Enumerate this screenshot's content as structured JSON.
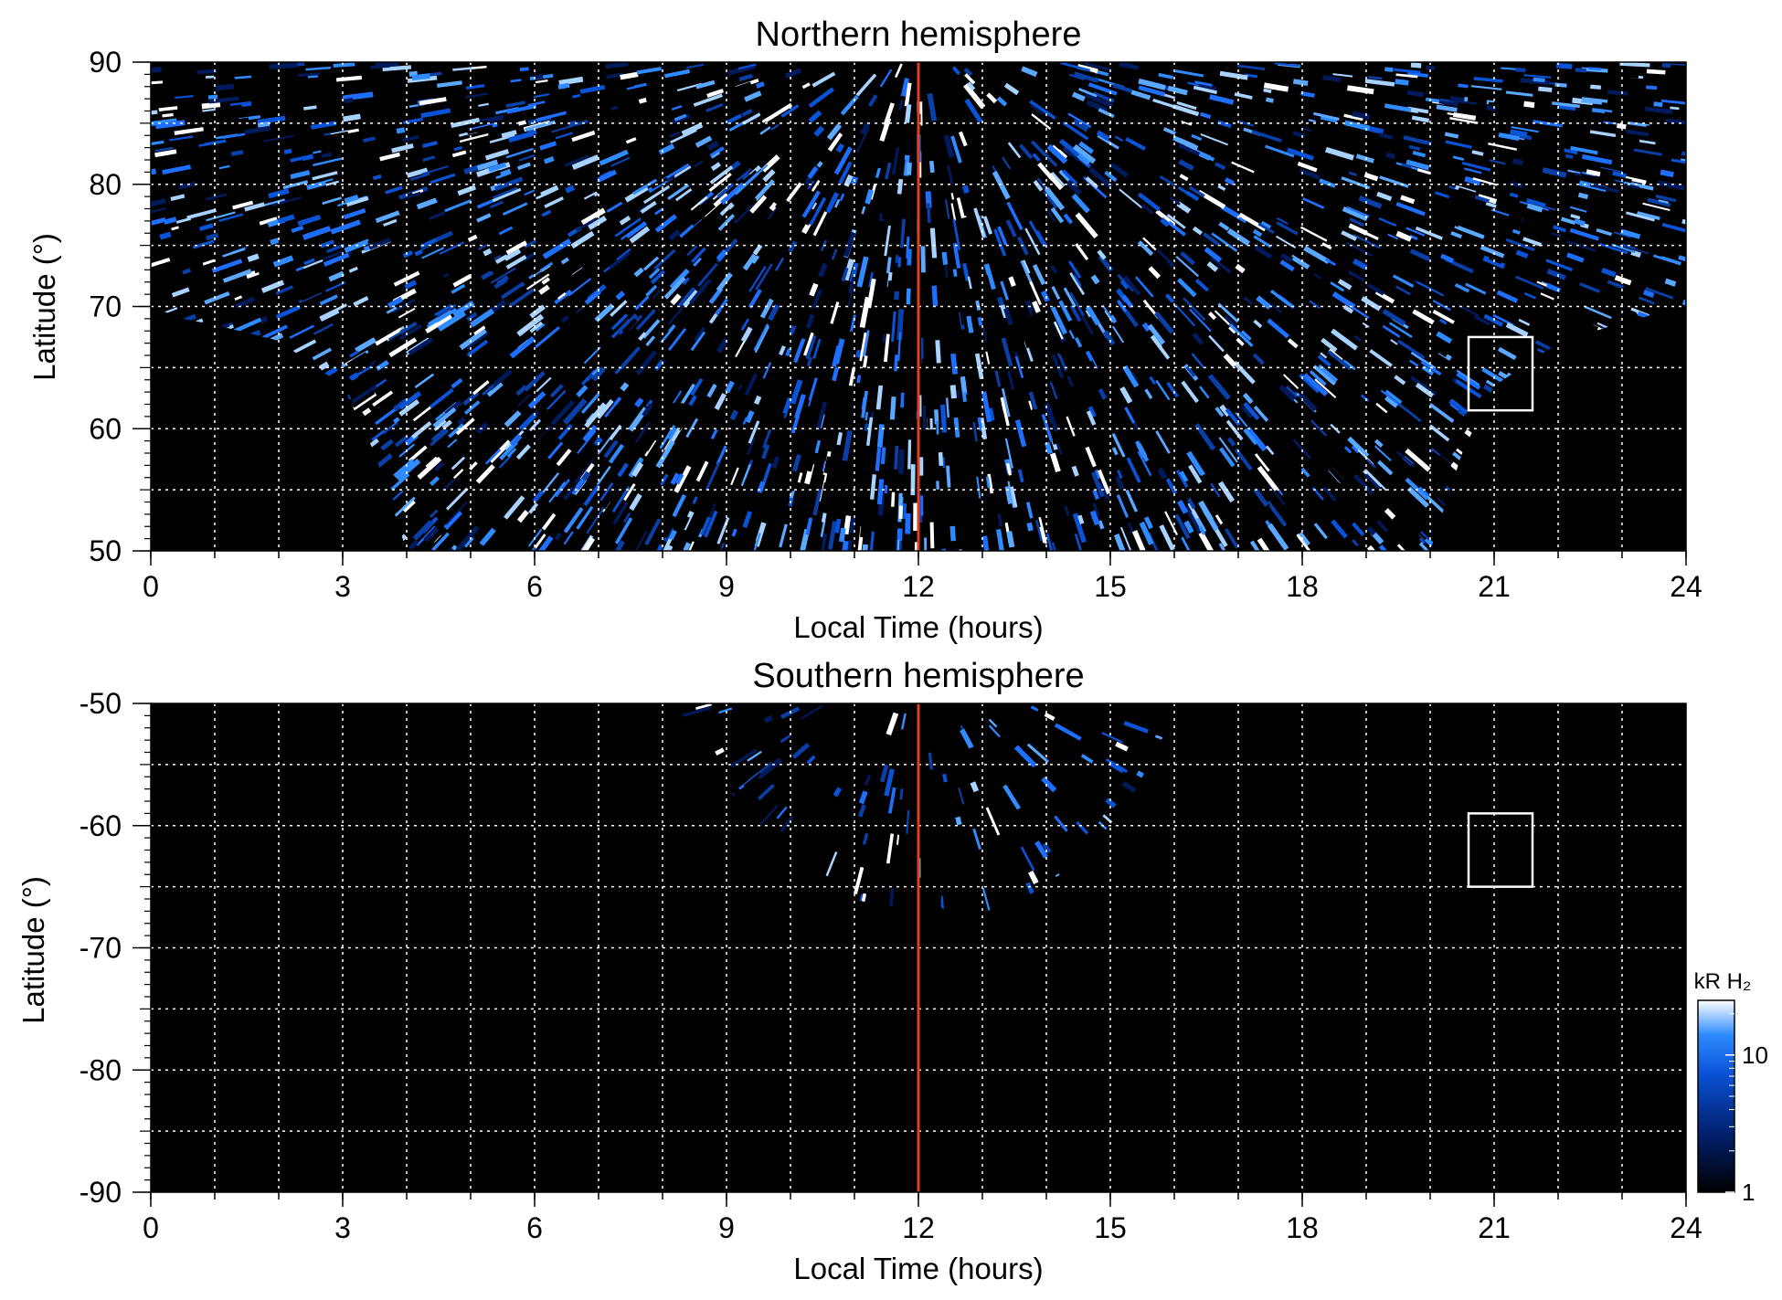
{
  "chart_data": [
    {
      "type": "heatmap",
      "title": "Northern hemisphere",
      "xlabel": "Local Time (hours)",
      "ylabel": "Latitude (°)",
      "xlim": [
        0,
        24
      ],
      "ylim": [
        50,
        90
      ],
      "x_ticks": [
        0,
        3,
        6,
        9,
        12,
        15,
        18,
        21,
        24
      ],
      "y_ticks": [
        50,
        60,
        70,
        80,
        90
      ],
      "x_tick_labels": [
        "0",
        "3",
        "6",
        "9",
        "12",
        "15",
        "18",
        "21",
        "24"
      ],
      "y_tick_labels": [
        "50",
        "60",
        "70",
        "80",
        "90"
      ],
      "grid": true,
      "marker_line": {
        "x": 12,
        "color": "#e0401c"
      },
      "box": {
        "x": [
          20.6,
          21.6
        ],
        "y": [
          61.5,
          67.5
        ]
      },
      "coverage_edge": [
        [
          0,
          70
        ],
        [
          0.5,
          69
        ],
        [
          1,
          68.5
        ],
        [
          2,
          67.2
        ],
        [
          3,
          63.5
        ],
        [
          3.5,
          58
        ],
        [
          4,
          50
        ],
        [
          20,
          50
        ],
        [
          20.5,
          58
        ],
        [
          21,
          63.5
        ],
        [
          22,
          67
        ],
        [
          23,
          68.7
        ],
        [
          24,
          70
        ]
      ]
    },
    {
      "type": "heatmap",
      "title": "Southern hemisphere",
      "xlabel": "Local Time (hours)",
      "ylabel": "Latitude (°)",
      "xlim": [
        0,
        24
      ],
      "ylim": [
        -90,
        -50
      ],
      "x_ticks": [
        0,
        3,
        6,
        9,
        12,
        15,
        18,
        21,
        24
      ],
      "y_ticks": [
        -90,
        -80,
        -70,
        -60,
        -50
      ],
      "x_tick_labels": [
        "0",
        "3",
        "6",
        "9",
        "12",
        "15",
        "18",
        "21",
        "24"
      ],
      "y_tick_labels": [
        "-90",
        "-80",
        "-70",
        "-60",
        "-50"
      ],
      "grid": true,
      "marker_line": {
        "x": 12,
        "color": "#e0401c"
      },
      "box": {
        "x": [
          20.6,
          21.6
        ],
        "y": [
          -65,
          -59
        ]
      },
      "coverage_edge": [
        [
          8.2,
          -50
        ],
        [
          8.5,
          -52.5
        ],
        [
          9,
          -57
        ],
        [
          10,
          -62.5
        ],
        [
          11,
          -66
        ],
        [
          11.7,
          -67
        ],
        [
          12.2,
          -66.2
        ],
        [
          12.6,
          -67.5
        ],
        [
          13.5,
          -66.5
        ],
        [
          14.5,
          -63
        ],
        [
          15.3,
          -58
        ],
        [
          15.8,
          -53
        ],
        [
          16,
          -50
        ]
      ]
    }
  ],
  "colorbar": {
    "label": "kR H₂",
    "ticks": [
      1,
      10
    ],
    "tick_labels": [
      "1",
      "10"
    ],
    "range": [
      1,
      25
    ],
    "scale": "log",
    "colors": [
      "#000000",
      "#001f6b",
      "#0a52d6",
      "#2f8bff",
      "#ffffff"
    ]
  }
}
